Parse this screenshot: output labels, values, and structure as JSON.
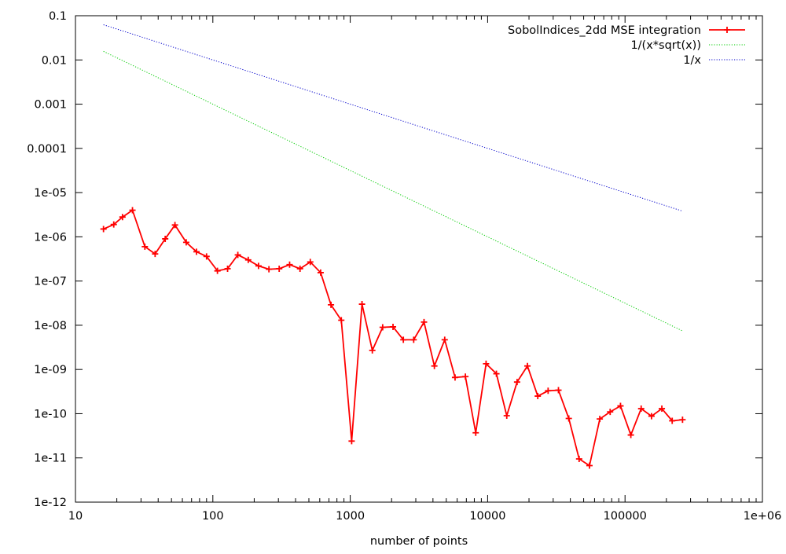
{
  "chart_data": {
    "type": "line",
    "title": "",
    "xlabel": "number of points",
    "ylabel": "",
    "x_scale": "log",
    "y_scale": "log",
    "xlim": [
      10,
      1000000
    ],
    "ylim": [
      1e-12,
      0.1
    ],
    "x_ticks": [
      10,
      100,
      1000,
      10000,
      100000,
      1000000
    ],
    "x_tick_labels": [
      "10",
      "100",
      "1000",
      "10000",
      "100000",
      "1e+06"
    ],
    "y_ticks": [
      1e-12,
      1e-11,
      1e-10,
      1e-09,
      1e-08,
      1e-07,
      1e-06,
      1e-05,
      0.0001,
      0.001,
      0.01,
      0.1
    ],
    "y_tick_labels": [
      "1e-12",
      "1e-11",
      "1e-10",
      "1e-09",
      "1e-08",
      "1e-07",
      "1e-06",
      "1e-05",
      "0.0001",
      "0.001",
      "0.01",
      "0.1"
    ],
    "grid": false,
    "legend_position": "top-right",
    "series": [
      {
        "name": "SobolIndices_2dd MSE integration",
        "color": "#ff0000",
        "style": "line-with-plus-markers",
        "x": [
          16,
          19,
          22,
          26,
          32,
          38,
          45,
          53,
          64,
          76,
          90,
          108,
          128,
          152,
          181,
          215,
          256,
          304,
          362,
          431,
          512,
          609,
          724,
          861,
          1024,
          1218,
          1448,
          1722,
          2048,
          2435,
          2896,
          3444,
          4096,
          4871,
          5793,
          6889,
          8192,
          9742,
          11585,
          13777,
          16384,
          19484,
          23170,
          27554,
          32768,
          38968,
          46341,
          55109,
          65536,
          77936,
          92682,
          110218,
          131072,
          155872,
          185364,
          220436,
          262144
        ],
        "y": [
          1.5e-06,
          1.9e-06,
          2.8e-06,
          4e-06,
          6e-07,
          4.1e-07,
          9e-07,
          1.85e-06,
          7.5e-07,
          4.6e-07,
          3.6e-07,
          1.7e-07,
          1.9e-07,
          3.9e-07,
          3e-07,
          2.2e-07,
          1.85e-07,
          1.9e-07,
          2.35e-07,
          1.9e-07,
          2.7e-07,
          1.55e-07,
          2.9e-08,
          1.3e-08,
          2.4e-11,
          3e-08,
          2.7e-09,
          9e-09,
          9.2e-09,
          4.7e-09,
          4.7e-09,
          1.18e-08,
          1.2e-09,
          4.7e-09,
          6.6e-10,
          6.9e-10,
          3.7e-11,
          1.35e-09,
          8e-10,
          9e-11,
          5.2e-10,
          1.2e-09,
          2.5e-10,
          3.3e-10,
          3.4e-10,
          7.8e-11,
          9.5e-12,
          6.7e-12,
          7.6e-11,
          1.1e-10,
          1.5e-10,
          3.3e-11,
          1.3e-10,
          8.8e-11,
          1.3e-10,
          6.9e-11,
          7.3e-11
        ]
      },
      {
        "name": "1/(x*sqrt(x))",
        "color": "#00cc00",
        "style": "dotted",
        "function": "x^-1.5",
        "x": [
          16,
          262144
        ],
        "y": [
          0.015625,
          7.45e-09
        ]
      },
      {
        "name": "1/x",
        "color": "#0000cc",
        "style": "dotted",
        "function": "x^-1",
        "x": [
          16,
          262144
        ],
        "y": [
          0.0625,
          3.815e-06
        ]
      }
    ]
  }
}
